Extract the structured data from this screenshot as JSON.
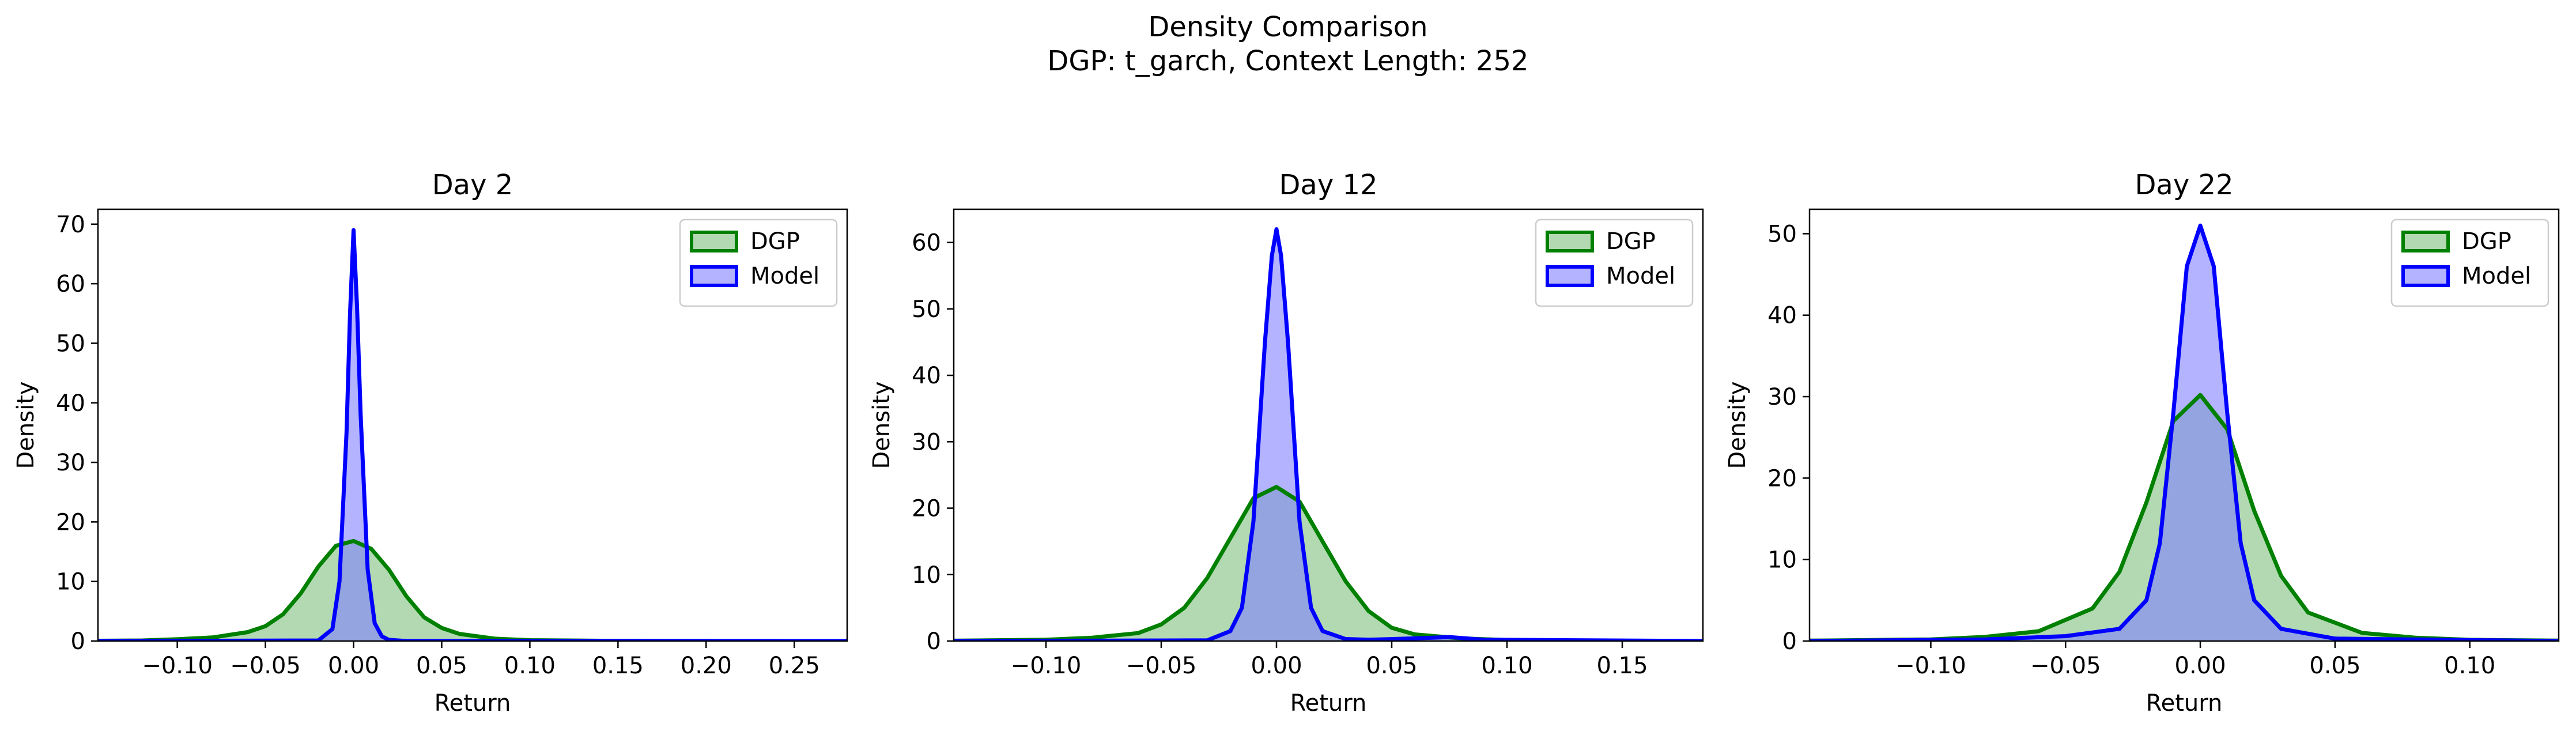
{
  "figure": {
    "title": "Density Comparison",
    "subtitle": "DGP: t_garch, Context Length: 252"
  },
  "colors": {
    "dgp_line": "#008000",
    "dgp_fill": "#7fc07f",
    "model_line": "#0000ff",
    "model_fill": "#8080ff"
  },
  "legend": {
    "position": "top-right"
  },
  "chart_data": [
    {
      "type": "area",
      "title": "Day 2",
      "xlabel": "Return",
      "ylabel": "Density",
      "xlim": [
        -0.145,
        0.28
      ],
      "ylim": [
        0,
        72.5
      ],
      "xticks": [
        -0.1,
        -0.05,
        0.0,
        0.05,
        0.1,
        0.15,
        0.2,
        0.25
      ],
      "xtick_labels": [
        "−0.10",
        "−0.05",
        "0.00",
        "0.05",
        "0.10",
        "0.15",
        "0.20",
        "0.25"
      ],
      "yticks": [
        0,
        10,
        20,
        30,
        40,
        50,
        60,
        70
      ],
      "ytick_labels": [
        "0",
        "10",
        "20",
        "30",
        "40",
        "50",
        "60",
        "70"
      ],
      "grid": false,
      "series": [
        {
          "name": "DGP",
          "x": [
            -0.145,
            -0.12,
            -0.1,
            -0.08,
            -0.06,
            -0.05,
            -0.04,
            -0.03,
            -0.02,
            -0.01,
            0.0,
            0.01,
            0.02,
            0.03,
            0.04,
            0.05,
            0.06,
            0.08,
            0.1,
            0.14,
            0.2,
            0.28
          ],
          "y": [
            0.05,
            0.1,
            0.3,
            0.6,
            1.5,
            2.5,
            4.5,
            8.0,
            12.5,
            16.0,
            16.8,
            15.5,
            12.0,
            7.5,
            4.0,
            2.2,
            1.2,
            0.4,
            0.15,
            0.05,
            0.02,
            0.0
          ]
        },
        {
          "name": "Model",
          "x": [
            -0.145,
            -0.02,
            -0.012,
            -0.008,
            -0.004,
            -0.002,
            0.0,
            0.002,
            0.004,
            0.008,
            0.012,
            0.016,
            0.02,
            0.03,
            0.06,
            0.28
          ],
          "y": [
            0.0,
            0.1,
            2.0,
            10.0,
            35.0,
            55.0,
            69.0,
            56.0,
            38.0,
            12.0,
            3.0,
            0.8,
            0.2,
            0.0,
            0.0,
            0.0
          ]
        }
      ]
    },
    {
      "type": "area",
      "title": "Day 12",
      "xlabel": "Return",
      "ylabel": "Density",
      "xlim": [
        -0.14,
        0.185
      ],
      "ylim": [
        0,
        65
      ],
      "xticks": [
        -0.1,
        -0.05,
        0.0,
        0.05,
        0.1,
        0.15
      ],
      "xtick_labels": [
        "−0.10",
        "−0.05",
        "0.00",
        "0.05",
        "0.10",
        "0.15"
      ],
      "yticks": [
        0,
        10,
        20,
        30,
        40,
        50,
        60
      ],
      "ytick_labels": [
        "0",
        "10",
        "20",
        "30",
        "40",
        "50",
        "60"
      ],
      "grid": false,
      "series": [
        {
          "name": "DGP",
          "x": [
            -0.14,
            -0.1,
            -0.08,
            -0.06,
            -0.05,
            -0.04,
            -0.03,
            -0.02,
            -0.01,
            0.0,
            0.01,
            0.02,
            0.03,
            0.04,
            0.05,
            0.06,
            0.08,
            0.1,
            0.14,
            0.185
          ],
          "y": [
            0.05,
            0.2,
            0.5,
            1.2,
            2.5,
            5.0,
            9.5,
            15.5,
            21.5,
            23.2,
            21.0,
            15.0,
            9.0,
            4.5,
            2.0,
            1.0,
            0.4,
            0.15,
            0.05,
            0.0
          ]
        },
        {
          "name": "Model",
          "x": [
            -0.14,
            -0.03,
            -0.02,
            -0.015,
            -0.01,
            -0.005,
            -0.002,
            0.0,
            0.002,
            0.005,
            0.01,
            0.015,
            0.02,
            0.03,
            0.04,
            0.06,
            0.075,
            0.09,
            0.185
          ],
          "y": [
            0.0,
            0.1,
            1.5,
            5.0,
            18.0,
            45.0,
            58.0,
            62.0,
            58.0,
            45.0,
            18.0,
            5.0,
            1.5,
            0.3,
            0.2,
            0.4,
            0.6,
            0.2,
            0.0
          ]
        }
      ]
    },
    {
      "type": "area",
      "title": "Day 22",
      "xlabel": "Return",
      "ylabel": "Density",
      "xlim": [
        -0.145,
        0.133
      ],
      "ylim": [
        0,
        53
      ],
      "xticks": [
        -0.1,
        -0.05,
        0.0,
        0.05,
        0.1
      ],
      "xtick_labels": [
        "−0.10",
        "−0.05",
        "0.00",
        "0.05",
        "0.10"
      ],
      "yticks": [
        0,
        10,
        20,
        30,
        40,
        50
      ],
      "ytick_labels": [
        "0",
        "10",
        "20",
        "30",
        "40",
        "50"
      ],
      "grid": false,
      "series": [
        {
          "name": "DGP",
          "x": [
            -0.145,
            -0.1,
            -0.08,
            -0.06,
            -0.04,
            -0.03,
            -0.02,
            -0.01,
            0.0,
            0.01,
            0.02,
            0.03,
            0.04,
            0.06,
            0.08,
            0.1,
            0.133
          ],
          "y": [
            0.05,
            0.2,
            0.5,
            1.2,
            4.0,
            8.5,
            17.0,
            27.0,
            30.2,
            26.0,
            16.0,
            8.0,
            3.5,
            1.0,
            0.4,
            0.15,
            0.05
          ]
        },
        {
          "name": "Model",
          "x": [
            -0.145,
            -0.08,
            -0.05,
            -0.03,
            -0.02,
            -0.015,
            -0.01,
            -0.005,
            0.0,
            0.005,
            0.01,
            0.015,
            0.02,
            0.03,
            0.05,
            0.133
          ],
          "y": [
            0.0,
            0.2,
            0.6,
            1.5,
            5.0,
            12.0,
            28.0,
            46.0,
            51.0,
            46.0,
            28.0,
            12.0,
            5.0,
            1.5,
            0.3,
            0.0
          ]
        }
      ]
    }
  ]
}
